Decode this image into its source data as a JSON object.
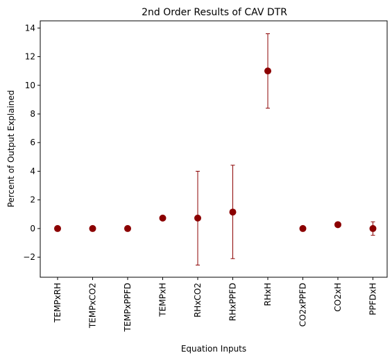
{
  "chart_data": {
    "type": "scatter",
    "title": "2nd Order Results of CAV DTR",
    "xlabel": "Equation Inputs",
    "ylabel": "Percent of Output Explained",
    "categories": [
      "TEMPxRH",
      "TEMPxCO2",
      "TEMPxPPFD",
      "TEMPxH",
      "RHxCO2",
      "RHxPPFD",
      "RHxH",
      "CO2xPPFD",
      "CO2xH",
      "PPFDxH"
    ],
    "values": [
      0.0,
      0.0,
      0.0,
      0.73,
      0.73,
      1.15,
      11.0,
      0.0,
      0.27,
      0.0
    ],
    "error_low": [
      0.0,
      0.0,
      0.0,
      0.73,
      -2.55,
      -2.1,
      8.4,
      0.0,
      0.27,
      -0.47
    ],
    "error_high": [
      0.0,
      0.0,
      0.0,
      0.73,
      4.0,
      4.42,
      13.6,
      0.0,
      0.27,
      0.47
    ],
    "ylim": [
      -3.4,
      14.5
    ],
    "yticks": [
      -2,
      0,
      2,
      4,
      6,
      8,
      10,
      12,
      14
    ],
    "ytick_labels": [
      "−2",
      "0",
      "2",
      "4",
      "6",
      "8",
      "10",
      "12",
      "14"
    ],
    "marker_color": "#8b0000",
    "error_color": "#8b0000",
    "grid": false,
    "legend": "none"
  }
}
